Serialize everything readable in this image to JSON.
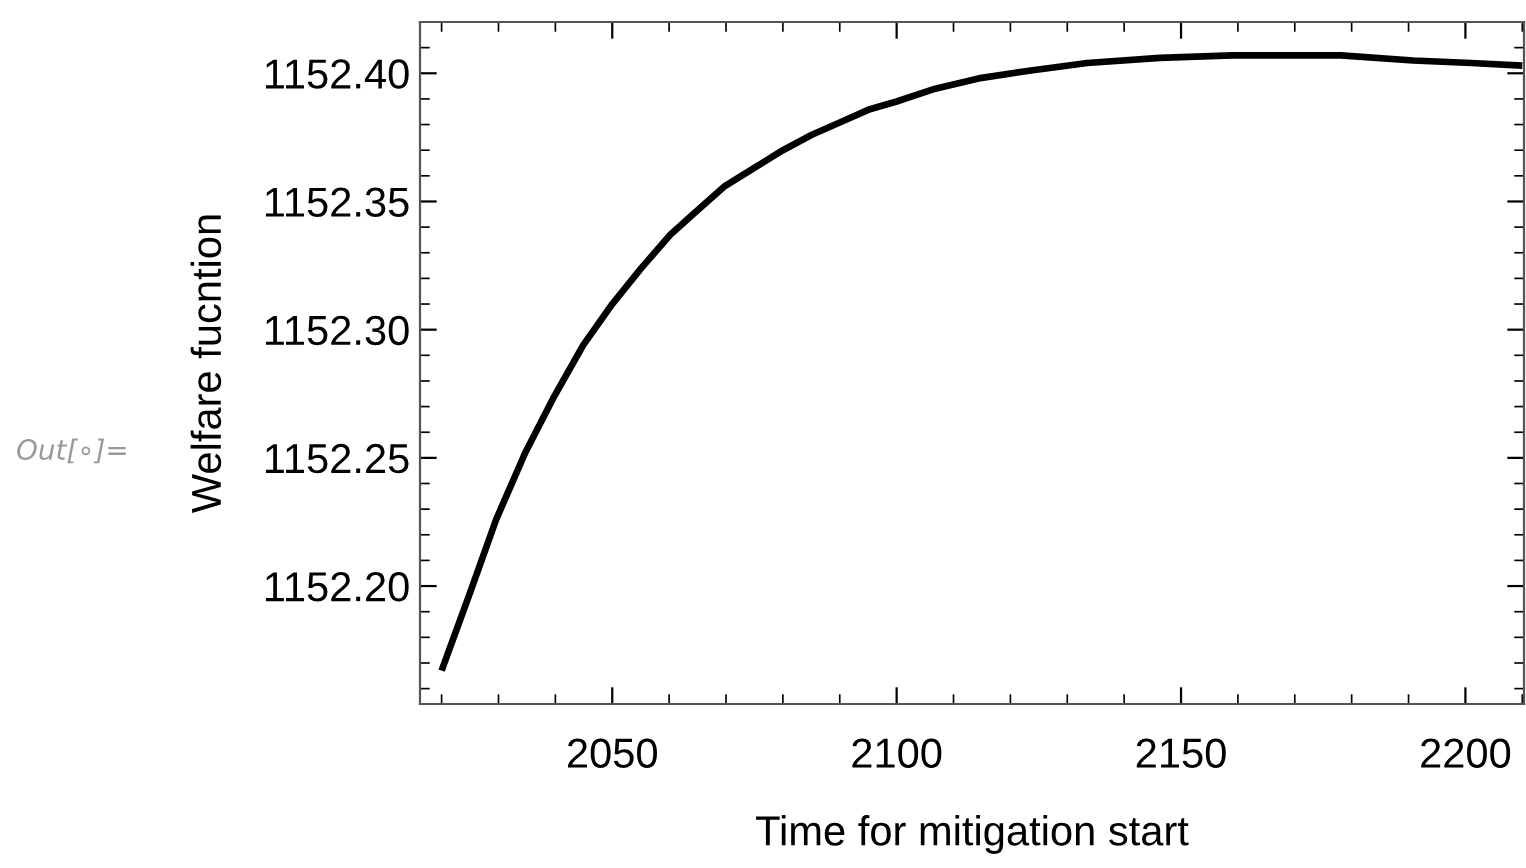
{
  "chart_data": {
    "type": "line",
    "xlabel": "Time for mitigation start",
    "ylabel": "Welfare fucntion",
    "annotations": [
      "Out[∘]="
    ],
    "x": [
      2020,
      2025.1,
      2029.6,
      2034.7,
      2039.8,
      2044.9,
      2050,
      2055.1,
      2060.2,
      2064.7,
      2069.8,
      2074.9,
      2080,
      2085.1,
      2090.2,
      2095.3,
      2100,
      2106.8,
      2114.4,
      2123.3,
      2133.5,
      2146.3,
      2159,
      2165.4,
      2178.1,
      2190.8,
      2201,
      2210
    ],
    "series": [
      {
        "color": "#000000",
        "values": [
          1152.167,
          1152.198,
          1152.226,
          1152.252,
          1152.274,
          1152.294,
          1152.31,
          1152.324,
          1152.337,
          1152.346,
          1152.356,
          1152.363,
          1152.37,
          1152.376,
          1152.381,
          1152.386,
          1152.389,
          1152.394,
          1152.398,
          1152.401,
          1152.404,
          1152.406,
          1152.407,
          1152.407,
          1152.407,
          1152.405,
          1152.404,
          1152.403
        ]
      }
    ],
    "xlim": [
      2016.2,
      2210.3
    ],
    "ylim": [
      1152.154,
      1152.42
    ],
    "xticks": [
      2050,
      2100,
      2150,
      2200
    ],
    "yticks": [
      {
        "value": 1152.2,
        "label": "1152.20"
      },
      {
        "value": 1152.25,
        "label": "1152.25"
      },
      {
        "value": 1152.3,
        "label": "1152.30"
      },
      {
        "value": 1152.35,
        "label": "1152.35"
      },
      {
        "value": 1152.4,
        "label": "1152.40"
      }
    ],
    "grid": false,
    "legend": false,
    "marker": "none",
    "line_style": "solid"
  }
}
